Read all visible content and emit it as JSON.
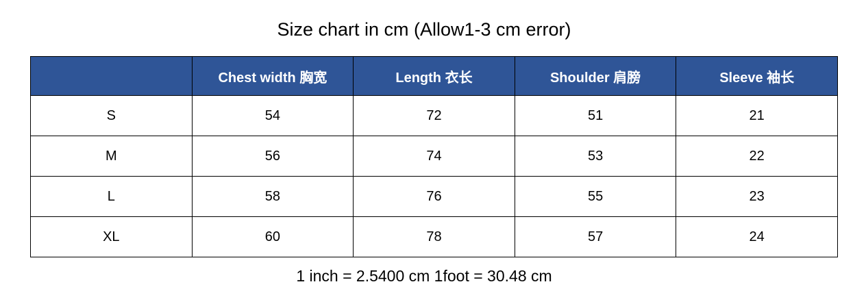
{
  "title": "Size chart in cm (Allow1-3 cm error)",
  "header_color": "#2F5597",
  "columns": [
    "",
    "Chest width  胸宽",
    "Length  衣长",
    "Shoulder  肩膀",
    "Sleeve  袖长"
  ],
  "rows": [
    [
      "S",
      "54",
      "72",
      "51",
      "21"
    ],
    [
      "M",
      "56",
      "74",
      "53",
      "22"
    ],
    [
      "L",
      "58",
      "76",
      "55",
      "23"
    ],
    [
      "XL",
      "60",
      "78",
      "57",
      "24"
    ]
  ],
  "footer": "1 inch = 2.5400 cm 1foot = 30.48 cm"
}
